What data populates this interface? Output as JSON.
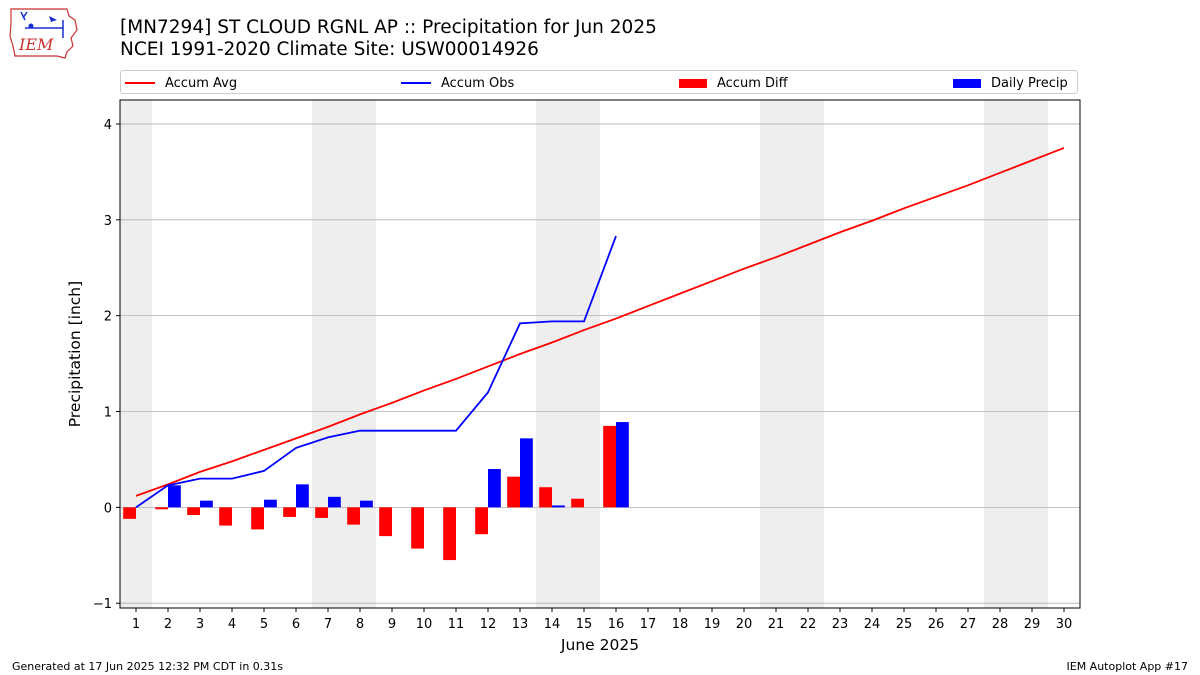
{
  "header": {
    "title_line1": "[MN7294] ST CLOUD RGNL AP :: Precipitation for Jun 2025",
    "title_line2": "NCEI 1991-2020 Climate Site: USW00014926",
    "logo_text": "IEM"
  },
  "footer": {
    "generated": "Generated at 17 Jun 2025 12:32 PM CDT in 0.31s",
    "app": "IEM Autoplot App #17"
  },
  "colors": {
    "avg": "#ff0000",
    "obs": "#0000ff",
    "diff": "#ff0000",
    "daily": "#0000ff",
    "weekend_band": "#eeeeee",
    "grid": "#b0b0b0"
  },
  "chart_data": {
    "type": "bar",
    "xlabel": "June 2025",
    "ylabel": "Precipitation [inch]",
    "xlim": [
      0.5,
      30.5
    ],
    "ylim": [
      -1.05,
      4.25
    ],
    "yticks": [
      -1,
      0,
      1,
      2,
      3,
      4
    ],
    "days": [
      1,
      2,
      3,
      4,
      5,
      6,
      7,
      8,
      9,
      10,
      11,
      12,
      13,
      14,
      15,
      16,
      17,
      18,
      19,
      20,
      21,
      22,
      23,
      24,
      25,
      26,
      27,
      28,
      29,
      30
    ],
    "weekend_bands": [
      [
        0.5,
        1.5
      ],
      [
        6.5,
        8.5
      ],
      [
        13.5,
        15.5
      ],
      [
        20.5,
        22.5
      ],
      [
        27.5,
        29.5
      ]
    ],
    "legend": [
      {
        "name": "Accum Avg",
        "kind": "line",
        "color_key": "avg"
      },
      {
        "name": "Accum Obs",
        "kind": "line",
        "color_key": "obs"
      },
      {
        "name": "Accum Diff",
        "kind": "bar",
        "color_key": "diff"
      },
      {
        "name": "Daily Precip",
        "kind": "bar",
        "color_key": "daily"
      }
    ],
    "series": [
      {
        "name": "Accum Avg",
        "type": "line",
        "values": [
          0.12,
          0.24,
          0.37,
          0.48,
          0.6,
          0.72,
          0.84,
          0.97,
          1.09,
          1.22,
          1.34,
          1.47,
          1.6,
          1.72,
          1.85,
          1.97,
          2.1,
          2.23,
          2.36,
          2.49,
          2.61,
          2.74,
          2.87,
          2.99,
          3.12,
          3.24,
          3.36,
          3.49,
          3.62,
          3.75
        ]
      },
      {
        "name": "Accum Obs",
        "type": "line",
        "values": [
          0.0,
          0.23,
          0.3,
          0.3,
          0.38,
          0.62,
          0.73,
          0.8,
          0.8,
          0.8,
          0.8,
          1.2,
          1.92,
          1.94,
          1.94,
          2.83
        ]
      },
      {
        "name": "Accum Diff",
        "type": "bar",
        "values": [
          -0.12,
          -0.02,
          -0.08,
          -0.19,
          -0.23,
          -0.1,
          -0.11,
          -0.18,
          -0.3,
          -0.43,
          -0.55,
          -0.28,
          0.32,
          0.21,
          0.09,
          0.85
        ]
      },
      {
        "name": "Daily Precip",
        "type": "bar",
        "values": [
          0.0,
          0.23,
          0.07,
          0.0,
          0.08,
          0.24,
          0.11,
          0.07,
          0.0,
          0.0,
          0.0,
          0.4,
          0.72,
          0.02,
          0.0,
          0.89
        ]
      }
    ]
  }
}
